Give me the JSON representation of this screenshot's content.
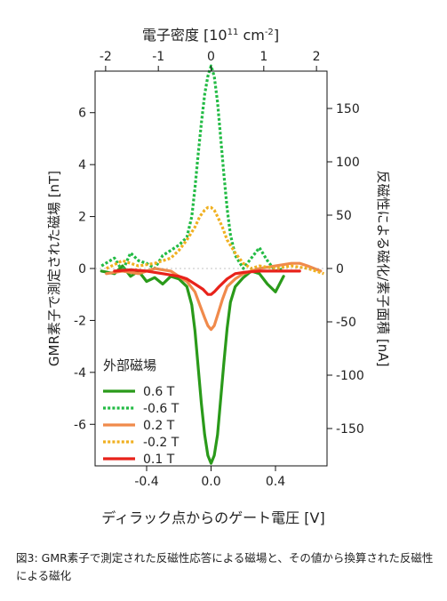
{
  "figure": {
    "caption": "図3: GMR素子で測定された反磁性応答による磁場と、その値から換算された反磁性による磁化"
  },
  "chart_data": {
    "type": "line",
    "x_axis": {
      "label": "ディラック点からのゲート電圧 [V]",
      "range": [
        -0.72,
        0.72
      ],
      "ticks": [
        -0.4,
        0.0,
        0.4
      ],
      "tick_labels": [
        "-0.4",
        "0.0",
        "0.4"
      ]
    },
    "top_axis": {
      "label_main": "電子密度 [10",
      "label_sup1": "11",
      "label_mid": " cm",
      "label_sup2": "-2",
      "label_end": "]",
      "range": [
        -2.2,
        2.2
      ],
      "ticks": [
        -2,
        -1,
        0,
        1,
        2
      ],
      "tick_labels": [
        "-2",
        "-1",
        "0",
        "1",
        "2"
      ]
    },
    "y_axis_left": {
      "label": "GMR素子で測定された磁場 [nT]",
      "range": [
        -7.6,
        7.6
      ],
      "ticks": [
        -6,
        -4,
        -2,
        0,
        2,
        4,
        6
      ],
      "tick_labels": [
        "-6",
        "-4",
        "-2",
        "0",
        "2",
        "4",
        "6"
      ]
    },
    "y_axis_right": {
      "label": "反磁性による磁化/素子面積 [nA]",
      "range": [
        -185,
        185
      ],
      "ticks": [
        -150,
        -100,
        -50,
        0,
        50,
        100,
        150
      ],
      "tick_labels": [
        "-150",
        "-100",
        "-50",
        "0",
        "50",
        "100",
        "150"
      ]
    },
    "legend": {
      "title": "外部磁場",
      "position": "bottom-left"
    },
    "series": [
      {
        "name": "0.6 T",
        "color": "#2a9a1a",
        "style": "solid",
        "x": [
          -0.68,
          -0.6,
          -0.55,
          -0.5,
          -0.45,
          -0.4,
          -0.35,
          -0.3,
          -0.25,
          -0.2,
          -0.15,
          -0.12,
          -0.1,
          -0.08,
          -0.06,
          -0.04,
          -0.02,
          0.0,
          0.02,
          0.04,
          0.06,
          0.08,
          0.1,
          0.12,
          0.15,
          0.2,
          0.25,
          0.3,
          0.35,
          0.4,
          0.45
        ],
        "y": [
          -0.1,
          -0.2,
          0.1,
          -0.3,
          -0.1,
          -0.5,
          -0.35,
          -0.6,
          -0.3,
          -0.4,
          -0.7,
          -1.4,
          -2.4,
          -3.8,
          -5.2,
          -6.4,
          -7.2,
          -7.5,
          -7.2,
          -6.4,
          -5.0,
          -3.6,
          -2.3,
          -1.3,
          -0.7,
          -0.35,
          -0.1,
          -0.2,
          -0.6,
          -0.9,
          -0.3
        ]
      },
      {
        "name": "-0.6 T",
        "color": "#22bb44",
        "style": "dotted",
        "x": [
          -0.68,
          -0.6,
          -0.55,
          -0.5,
          -0.45,
          -0.4,
          -0.35,
          -0.3,
          -0.25,
          -0.2,
          -0.15,
          -0.12,
          -0.1,
          -0.08,
          -0.06,
          -0.04,
          -0.02,
          0.0,
          0.02,
          0.04,
          0.06,
          0.08,
          0.1,
          0.12,
          0.15,
          0.2,
          0.25,
          0.3,
          0.35,
          0.4,
          0.45
        ],
        "y": [
          0.1,
          0.4,
          -0.1,
          0.6,
          0.3,
          0.2,
          0.0,
          0.5,
          0.7,
          0.9,
          1.2,
          2.0,
          3.1,
          4.4,
          5.6,
          6.7,
          7.4,
          7.8,
          7.4,
          6.4,
          5.0,
          3.6,
          2.3,
          1.3,
          0.5,
          0.0,
          0.4,
          0.8,
          0.3,
          -0.1,
          0.0
        ]
      },
      {
        "name": "0.2 T",
        "color": "#f08a4b",
        "style": "solid",
        "x": [
          -0.65,
          -0.55,
          -0.45,
          -0.35,
          -0.25,
          -0.2,
          -0.15,
          -0.1,
          -0.07,
          -0.04,
          -0.02,
          0.0,
          0.02,
          0.04,
          0.07,
          0.1,
          0.15,
          0.2,
          0.25,
          0.3,
          0.4,
          0.5,
          0.55,
          0.6,
          0.68
        ],
        "y": [
          -0.2,
          -0.1,
          -0.2,
          0.0,
          -0.1,
          -0.3,
          -0.5,
          -0.9,
          -1.4,
          -1.9,
          -2.2,
          -2.35,
          -2.2,
          -1.8,
          -1.2,
          -0.7,
          -0.4,
          -0.2,
          -0.1,
          0.0,
          0.1,
          0.2,
          0.2,
          0.1,
          -0.1
        ]
      },
      {
        "name": "-0.2 T",
        "color": "#f0b020",
        "style": "dotted",
        "x": [
          -0.65,
          -0.55,
          -0.45,
          -0.35,
          -0.25,
          -0.2,
          -0.15,
          -0.1,
          -0.07,
          -0.04,
          -0.02,
          0.0,
          0.02,
          0.04,
          0.07,
          0.1,
          0.15,
          0.2,
          0.25,
          0.3,
          0.4,
          0.5,
          0.6,
          0.7
        ],
        "y": [
          0.0,
          0.3,
          0.1,
          0.2,
          0.4,
          0.7,
          1.1,
          1.6,
          2.0,
          2.25,
          2.35,
          2.35,
          2.25,
          2.0,
          1.6,
          1.1,
          0.6,
          0.2,
          0.0,
          0.1,
          0.0,
          0.1,
          0.0,
          -0.2
        ]
      },
      {
        "name": "0.1 T",
        "color": "#e8221a",
        "style": "solid",
        "x": [
          -0.6,
          -0.5,
          -0.4,
          -0.3,
          -0.2,
          -0.15,
          -0.1,
          -0.05,
          -0.02,
          0.0,
          0.02,
          0.05,
          0.1,
          0.15,
          0.2,
          0.3,
          0.4,
          0.5,
          0.55
        ],
        "y": [
          -0.1,
          -0.05,
          -0.1,
          -0.2,
          -0.3,
          -0.4,
          -0.6,
          -0.8,
          -1.0,
          -1.0,
          -0.9,
          -0.7,
          -0.4,
          -0.2,
          -0.15,
          -0.1,
          -0.1,
          -0.1,
          -0.1
        ]
      }
    ]
  }
}
